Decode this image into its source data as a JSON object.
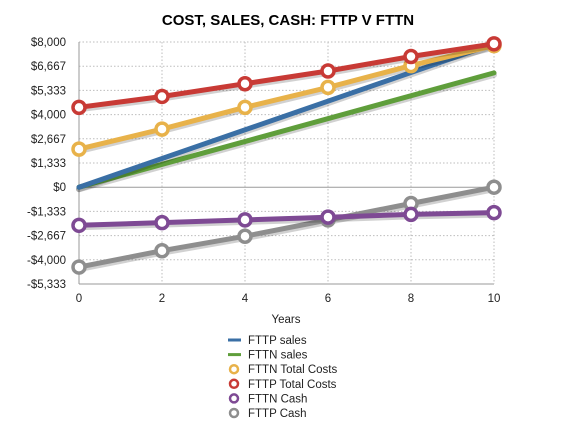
{
  "chart_data": {
    "type": "line",
    "title": "COST, SALES, CASH: FTTP V FTTN",
    "xlabel": "Years",
    "ylabel": "",
    "x": [
      0,
      2,
      4,
      6,
      8,
      10
    ],
    "x_ticks": [
      "0",
      "2",
      "4",
      "6",
      "8",
      "10"
    ],
    "xlim": [
      0,
      10
    ],
    "ylim": [
      -5333,
      8000
    ],
    "y_ticks": [
      8000,
      6667,
      5333,
      4000,
      2667,
      1333,
      0,
      -1333,
      -2667,
      -4000,
      -5333
    ],
    "y_tick_labels": [
      "$8,000",
      "$6,667",
      "$5,333",
      "$4,000",
      "$2,667",
      "$1,333",
      "$0",
      "-$1,333",
      "-$2,667",
      "-$4,000",
      "-$5,333"
    ],
    "grid": true,
    "legend_position": "bottom",
    "series": [
      {
        "name": "FTTP sales",
        "color": "#3a6fa5",
        "markers": false,
        "x": [
          0,
          10
        ],
        "values": [
          0,
          7900
        ]
      },
      {
        "name": "FTTN sales",
        "color": "#5f9e3b",
        "markers": false,
        "x": [
          0,
          10
        ],
        "values": [
          0,
          6300
        ]
      },
      {
        "name": "FTTN Total Costs",
        "color": "#e8b24a",
        "markers": true,
        "x": [
          0,
          2,
          4,
          6,
          8,
          10
        ],
        "values": [
          2100,
          3200,
          4400,
          5500,
          6700,
          7800
        ]
      },
      {
        "name": "FTTP Total Costs",
        "color": "#c83a35",
        "markers": true,
        "x": [
          0,
          2,
          4,
          6,
          8,
          10
        ],
        "values": [
          4400,
          5000,
          5700,
          6400,
          7200,
          7900
        ]
      },
      {
        "name": "FTTN Cash",
        "color": "#7e4a94",
        "markers": true,
        "x": [
          0,
          2,
          4,
          6,
          8,
          10
        ],
        "values": [
          -2100,
          -1950,
          -1800,
          -1650,
          -1500,
          -1400
        ]
      },
      {
        "name": "FTTP Cash",
        "color": "#8e8e8e",
        "markers": true,
        "x": [
          0,
          2,
          4,
          6,
          8,
          10
        ],
        "values": [
          -4400,
          -3500,
          -2700,
          -1800,
          -900,
          0
        ]
      }
    ]
  }
}
